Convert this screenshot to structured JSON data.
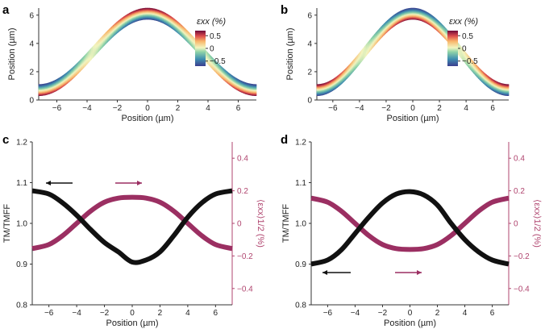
{
  "panels": [
    "a",
    "b",
    "c",
    "d"
  ],
  "colors": {
    "black_curve": "#111111",
    "magenta_curve": "#9b2f62",
    "right_axis": "#b0456f",
    "colormap": "spectral-like: dark blue (#3b4cc0) -> teal -> pale yellow -> orange -> dark red (#7b0a3a)"
  },
  "chart_data": [
    {
      "panel": "a",
      "type": "line",
      "xlabel": "Position (µm)",
      "ylabel": "Position (µm)",
      "xlim": [
        -7.2,
        7.2
      ],
      "ylim": [
        0,
        6.5
      ],
      "xticks": [
        -6,
        -4,
        -2,
        0,
        2,
        4,
        6
      ],
      "xtick_labels": [
        "−6",
        "−4",
        "−2",
        "0",
        "2",
        "4",
        "6"
      ],
      "yticks": [
        0,
        2,
        4,
        6
      ],
      "ytick_labels": [
        "0",
        "2",
        "4",
        "6"
      ],
      "grid": false,
      "band_profile": {
        "amplitude": 5.4,
        "period": 14.4,
        "thickness": 0.8
      },
      "colorbar": {
        "label": "εxx (%)",
        "ticks": [
          0.5,
          0,
          -0.5
        ],
        "tick_labels": [
          "0.5",
          "0",
          "−0.5"
        ],
        "range": [
          -0.7,
          0.7
        ],
        "placement": "upper-right"
      },
      "strain_note": "top surface in tension near x=0 (red), compression at edges (blue)"
    },
    {
      "panel": "b",
      "type": "line",
      "xlabel": "Position (µm)",
      "ylabel": "Position (µm)",
      "xlim": [
        -7.2,
        7.2
      ],
      "ylim": [
        0,
        6.5
      ],
      "xticks": [
        -6,
        -4,
        -2,
        0,
        2,
        4,
        6
      ],
      "xtick_labels": [
        "−6",
        "−4",
        "−2",
        "0",
        "2",
        "4",
        "6"
      ],
      "yticks": [
        0,
        2,
        4,
        6
      ],
      "ytick_labels": [
        "0",
        "2",
        "4",
        "6"
      ],
      "grid": false,
      "band_profile": {
        "amplitude": 5.4,
        "period": 14.4,
        "thickness": 0.8
      },
      "colorbar": {
        "label": "εxx (%)",
        "ticks": [
          0.5,
          0,
          -0.5
        ],
        "tick_labels": [
          "0.5",
          "0",
          "−0.5"
        ],
        "range": [
          -0.7,
          0.7
        ],
        "placement": "upper-right"
      },
      "strain_note": "inverted: top surface in tension at edges, compression near x=0"
    },
    {
      "panel": "c",
      "type": "line",
      "xlabel": "Position (µm)",
      "ylabel_left": "TM/TMFF",
      "ylabel_right": "⟨εxx⟩1/2 (%)",
      "xlim": [
        -7.2,
        7.2
      ],
      "ylim_left": [
        0.8,
        1.2
      ],
      "ylim_right": [
        -0.5,
        0.5
      ],
      "xticks": [
        -6,
        -4,
        -2,
        0,
        2,
        4,
        6
      ],
      "xtick_labels": [
        "−6",
        "−4",
        "−2",
        "0",
        "2",
        "4",
        "6"
      ],
      "yticks_left": [
        0.8,
        0.9,
        1.0,
        1.1,
        1.2
      ],
      "ytick_labels_left": [
        "0.8",
        "0.9",
        "1.0",
        "1.1",
        "1.2"
      ],
      "yticks_right": [
        -0.4,
        -0.2,
        0,
        0.2,
        0.4
      ],
      "ytick_labels_right": [
        "−0.4",
        "−0.2",
        "0",
        "0.2",
        "0.4"
      ],
      "grid": false,
      "series": [
        {
          "axis": "left",
          "x": [
            -7.2,
            -6,
            -5,
            -4,
            -3,
            -2,
            -1,
            0,
            1,
            2,
            3,
            4,
            5,
            6,
            7.2
          ],
          "values": [
            1.08,
            1.072,
            1.05,
            1.02,
            0.985,
            0.953,
            0.93,
            0.905,
            0.91,
            0.93,
            0.97,
            1.015,
            1.05,
            1.072,
            1.08
          ]
        },
        {
          "axis": "right",
          "x": [
            -7.2,
            -6,
            -5,
            -4,
            -3,
            -2,
            -1,
            0,
            1,
            2,
            3,
            4,
            5,
            6,
            7.2
          ],
          "values": [
            -0.155,
            -0.13,
            -0.075,
            0.0,
            0.075,
            0.13,
            0.155,
            0.16,
            0.155,
            0.13,
            0.075,
            0.0,
            -0.075,
            -0.13,
            -0.155
          ]
        }
      ],
      "arrows": [
        {
          "series": "left",
          "direction": "left"
        },
        {
          "series": "right",
          "direction": "right"
        }
      ]
    },
    {
      "panel": "d",
      "type": "line",
      "xlabel": "Position (µm)",
      "ylabel_left": "TM/TMFF",
      "ylabel_right": "⟨εxx⟩1/2 (%)",
      "xlim": [
        -7.2,
        7.2
      ],
      "ylim_left": [
        0.8,
        1.2
      ],
      "ylim_right": [
        -0.5,
        0.5
      ],
      "xticks": [
        -6,
        -4,
        -2,
        0,
        2,
        4,
        6
      ],
      "xtick_labels": [
        "−6",
        "−4",
        "−2",
        "0",
        "2",
        "4",
        "6"
      ],
      "yticks_left": [
        0.8,
        0.9,
        1.0,
        1.1,
        1.2
      ],
      "ytick_labels_left": [
        "0.8",
        "0.9",
        "1.0",
        "1.1",
        "1.2"
      ],
      "yticks_right": [
        -0.4,
        -0.2,
        0,
        0.2,
        0.4
      ],
      "ytick_labels_right": [
        "−0.4",
        "−0.2",
        "0",
        "0.2",
        "0.4"
      ],
      "grid": false,
      "series": [
        {
          "axis": "left",
          "x": [
            -7.2,
            -6,
            -5,
            -4,
            -3,
            -2,
            -1,
            0,
            1,
            2,
            3,
            4,
            5,
            6,
            7.2
          ],
          "values": [
            0.9,
            0.91,
            0.935,
            0.975,
            1.015,
            1.05,
            1.072,
            1.078,
            1.07,
            1.045,
            1.0,
            0.96,
            0.93,
            0.91,
            0.9
          ]
        },
        {
          "axis": "right",
          "x": [
            -7.2,
            -6,
            -5,
            -4,
            -3,
            -2,
            -1,
            0,
            1,
            2,
            3,
            4,
            5,
            6,
            7.2
          ],
          "values": [
            0.155,
            0.13,
            0.075,
            0.0,
            -0.075,
            -0.13,
            -0.155,
            -0.16,
            -0.155,
            -0.13,
            -0.075,
            0.0,
            0.075,
            0.13,
            0.155
          ]
        }
      ],
      "arrows": [
        {
          "series": "left",
          "direction": "left"
        },
        {
          "series": "right",
          "direction": "right"
        }
      ]
    }
  ]
}
